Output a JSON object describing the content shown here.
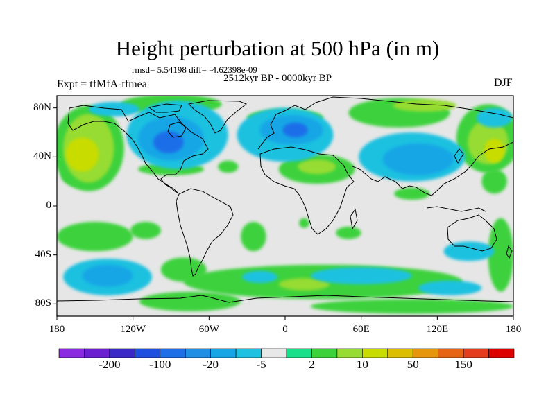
{
  "title": "Height perturbation at 500 hPa (in m)",
  "stats_line": "rmsd= 5.54198 diff= -4.62398e-09",
  "period": "2512kyr BP - 0000kyr BP",
  "experiment": "Expt = tfMfA-tfmea",
  "season": "DJF",
  "map": {
    "lon_range": [
      -180,
      180
    ],
    "lat_range": [
      -90,
      90
    ],
    "lon_labels": [
      {
        "lon": -180,
        "label": "180"
      },
      {
        "lon": -120,
        "label": "120W"
      },
      {
        "lon": -60,
        "label": "60W"
      },
      {
        "lon": 0,
        "label": "0"
      },
      {
        "lon": 60,
        "label": "60E"
      },
      {
        "lon": 120,
        "label": "120E"
      },
      {
        "lon": 180,
        "label": "180"
      }
    ],
    "lat_labels": [
      {
        "lat": 80,
        "label": "80N"
      },
      {
        "lat": 40,
        "label": "40N"
      },
      {
        "lat": 0,
        "label": "0"
      },
      {
        "lat": -40,
        "label": "40S"
      },
      {
        "lat": -80,
        "label": "80S"
      }
    ],
    "background_color": "#e6e6e6"
  },
  "colorbar": {
    "colors": [
      "#8a2be2",
      "#6a1fd0",
      "#3a28c8",
      "#1f4fe0",
      "#1e6ee8",
      "#1f8fe6",
      "#16a6e6",
      "#1ec1e0",
      "#e8e8e8",
      "#18e08a",
      "#3cd23c",
      "#96dc32",
      "#c8dc00",
      "#dcbe00",
      "#e6960a",
      "#e66414",
      "#e63c1e",
      "#dc0000"
    ],
    "labels": [
      {
        "index": 1,
        "label": "-200"
      },
      {
        "index": 3,
        "label": "-100"
      },
      {
        "index": 5,
        "label": "-20"
      },
      {
        "index": 7,
        "label": "-5"
      },
      {
        "index": 9,
        "label": "2"
      },
      {
        "index": 11,
        "label": "10"
      },
      {
        "index": 13,
        "label": "50"
      },
      {
        "index": 15,
        "label": "150"
      }
    ]
  },
  "fields": {
    "pos_light": [
      {
        "lon": -90,
        "lat": 83,
        "rx": 40,
        "ry": 8
      },
      {
        "lon": -155,
        "lat": 47,
        "rx": 28,
        "ry": 35
      },
      {
        "lon": -100,
        "lat": 72,
        "rx": 12,
        "ry": 12
      },
      {
        "lon": -165,
        "lat": 26,
        "rx": 12,
        "ry": 10
      },
      {
        "lon": -90,
        "lat": 30,
        "rx": 26,
        "ry": 5
      },
      {
        "lon": -45,
        "lat": 32,
        "rx": 8,
        "ry": 5
      },
      {
        "lon": 0,
        "lat": 72,
        "rx": 30,
        "ry": 7
      },
      {
        "lon": 25,
        "lat": 30,
        "rx": 30,
        "ry": 12
      },
      {
        "lon": 90,
        "lat": 76,
        "rx": 40,
        "ry": 12
      },
      {
        "lon": 160,
        "lat": 55,
        "rx": 25,
        "ry": 28
      },
      {
        "lon": 100,
        "lat": 10,
        "rx": 14,
        "ry": 5
      },
      {
        "lon": 165,
        "lat": 20,
        "rx": 10,
        "ry": 10
      },
      {
        "lon": -150,
        "lat": -25,
        "rx": 30,
        "ry": 12
      },
      {
        "lon": -110,
        "lat": -20,
        "rx": 12,
        "ry": 7
      },
      {
        "lon": -25,
        "lat": -25,
        "rx": 10,
        "ry": 12
      },
      {
        "lon": 15,
        "lat": -14,
        "rx": 4,
        "ry": 4
      },
      {
        "lon": 50,
        "lat": -22,
        "rx": 10,
        "ry": 5
      },
      {
        "lon": -80,
        "lat": -52,
        "rx": 18,
        "ry": 10
      },
      {
        "lon": 30,
        "lat": -62,
        "rx": 110,
        "ry": 14
      },
      {
        "lon": -75,
        "lat": -78,
        "rx": 40,
        "ry": 8
      },
      {
        "lon": 100,
        "lat": -82,
        "rx": 80,
        "ry": 6
      },
      {
        "lon": 170,
        "lat": -40,
        "rx": 10,
        "ry": 30
      }
    ],
    "pos_mid": [
      {
        "lon": -155,
        "lat": 47,
        "rx": 20,
        "ry": 28
      },
      {
        "lon": 160,
        "lat": 52,
        "rx": 16,
        "ry": 18
      },
      {
        "lon": 25,
        "lat": 32,
        "rx": 15,
        "ry": 6
      },
      {
        "lon": 110,
        "lat": 82,
        "rx": 25,
        "ry": 5
      },
      {
        "lon": 15,
        "lat": -64,
        "rx": 20,
        "ry": 5
      }
    ],
    "pos_strong": [
      {
        "lon": -160,
        "lat": 42,
        "rx": 13,
        "ry": 14
      },
      {
        "lon": 165,
        "lat": 45,
        "rx": 8,
        "ry": 10
      }
    ],
    "neg_light": [
      {
        "lon": -85,
        "lat": 58,
        "rx": 40,
        "ry": 28
      },
      {
        "lon": -135,
        "lat": 79,
        "rx": 20,
        "ry": 6
      },
      {
        "lon": 0,
        "lat": 58,
        "rx": 38,
        "ry": 22
      },
      {
        "lon": 100,
        "lat": 40,
        "rx": 42,
        "ry": 20
      },
      {
        "lon": 165,
        "lat": 72,
        "rx": 14,
        "ry": 8
      },
      {
        "lon": -140,
        "lat": -58,
        "rx": 35,
        "ry": 15
      },
      {
        "lon": 60,
        "lat": -57,
        "rx": 40,
        "ry": 7
      },
      {
        "lon": -20,
        "lat": -58,
        "rx": 14,
        "ry": 5
      },
      {
        "lon": 145,
        "lat": -37,
        "rx": 20,
        "ry": 8
      },
      {
        "lon": 130,
        "lat": -67,
        "rx": 25,
        "ry": 6
      }
    ],
    "neg_mid": [
      {
        "lon": -90,
        "lat": 55,
        "rx": 26,
        "ry": 18
      },
      {
        "lon": 5,
        "lat": 62,
        "rx": 25,
        "ry": 12
      },
      {
        "lon": 105,
        "lat": 38,
        "rx": 28,
        "ry": 13
      },
      {
        "lon": -140,
        "lat": -57,
        "rx": 20,
        "ry": 9
      }
    ],
    "neg_strong": [
      {
        "lon": -92,
        "lat": 52,
        "rx": 12,
        "ry": 9
      },
      {
        "lon": 8,
        "lat": 62,
        "rx": 10,
        "ry": 6
      }
    ]
  }
}
